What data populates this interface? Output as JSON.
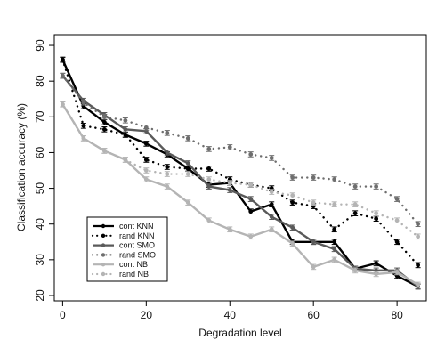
{
  "chart_data": {
    "type": "line",
    "title": "",
    "xlabel": "Degradation level",
    "ylabel": "Classification accuracy (%)",
    "xlim": [
      -2,
      87
    ],
    "ylim": [
      18.5,
      93
    ],
    "x_ticks": [
      0,
      20,
      40,
      60,
      80
    ],
    "y_ticks": [
      20,
      30,
      40,
      50,
      60,
      70,
      80,
      90
    ],
    "x_tick_labels": [
      "0",
      "20",
      "40",
      "60",
      "80"
    ],
    "y_tick_labels": [
      "20",
      "30",
      "40",
      "50",
      "60",
      "70",
      "80",
      "90"
    ],
    "grid": false,
    "legend_position": "bottom-left",
    "x": [
      0,
      5,
      10,
      15,
      20,
      25,
      30,
      35,
      40,
      45,
      50,
      55,
      60,
      65,
      70,
      75,
      80,
      85
    ],
    "series": [
      {
        "name": "cont KNN",
        "style": "solid",
        "color": "#000000",
        "values": [
          86,
          73,
          68.5,
          65,
          62.5,
          59.5,
          55.5,
          51,
          51.5,
          43.5,
          45.5,
          35,
          35,
          35,
          27.5,
          29,
          25.5,
          22.5
        ],
        "error": 0.7
      },
      {
        "name": "rand KNN",
        "style": "dotted",
        "color": "#000000",
        "values": [
          86,
          67.5,
          66.5,
          65,
          58,
          56,
          55.5,
          55.5,
          52.5,
          51,
          50,
          46,
          45,
          38.5,
          43,
          41.5,
          35,
          28.5
        ],
        "error": 0.7
      },
      {
        "name": "cont SMO",
        "style": "solid",
        "color": "#5a5a5a",
        "values": [
          81.5,
          74.5,
          70.5,
          66.5,
          66,
          60,
          57,
          50.5,
          49.5,
          47,
          42,
          39,
          35,
          33,
          27.5,
          27,
          27,
          22.5
        ],
        "error": 0.7
      },
      {
        "name": "rand SMO",
        "style": "dotted",
        "color": "#6e6e6e",
        "values": [
          81.5,
          74,
          70,
          69,
          67,
          65.5,
          64,
          61,
          61.5,
          59.5,
          58.5,
          53,
          53,
          52.5,
          50.5,
          50.5,
          47,
          40
        ],
        "error": 0.7
      },
      {
        "name": "cont NB",
        "style": "solid",
        "color": "#b4b4b4",
        "values": [
          73.5,
          64,
          60.5,
          58,
          52.5,
          50.5,
          46,
          41,
          38.5,
          36.5,
          38.5,
          34.5,
          28,
          30,
          27,
          26,
          26.5,
          23
        ],
        "error": 0.7
      },
      {
        "name": "rand NB",
        "style": "dotted",
        "color": "#b4b4b4",
        "values": [
          73.5,
          64,
          60.5,
          58,
          55,
          54,
          54,
          52.5,
          51.5,
          51,
          49,
          48,
          46,
          45.5,
          45.5,
          43,
          41,
          36.5
        ],
        "error": 0.7
      }
    ]
  }
}
